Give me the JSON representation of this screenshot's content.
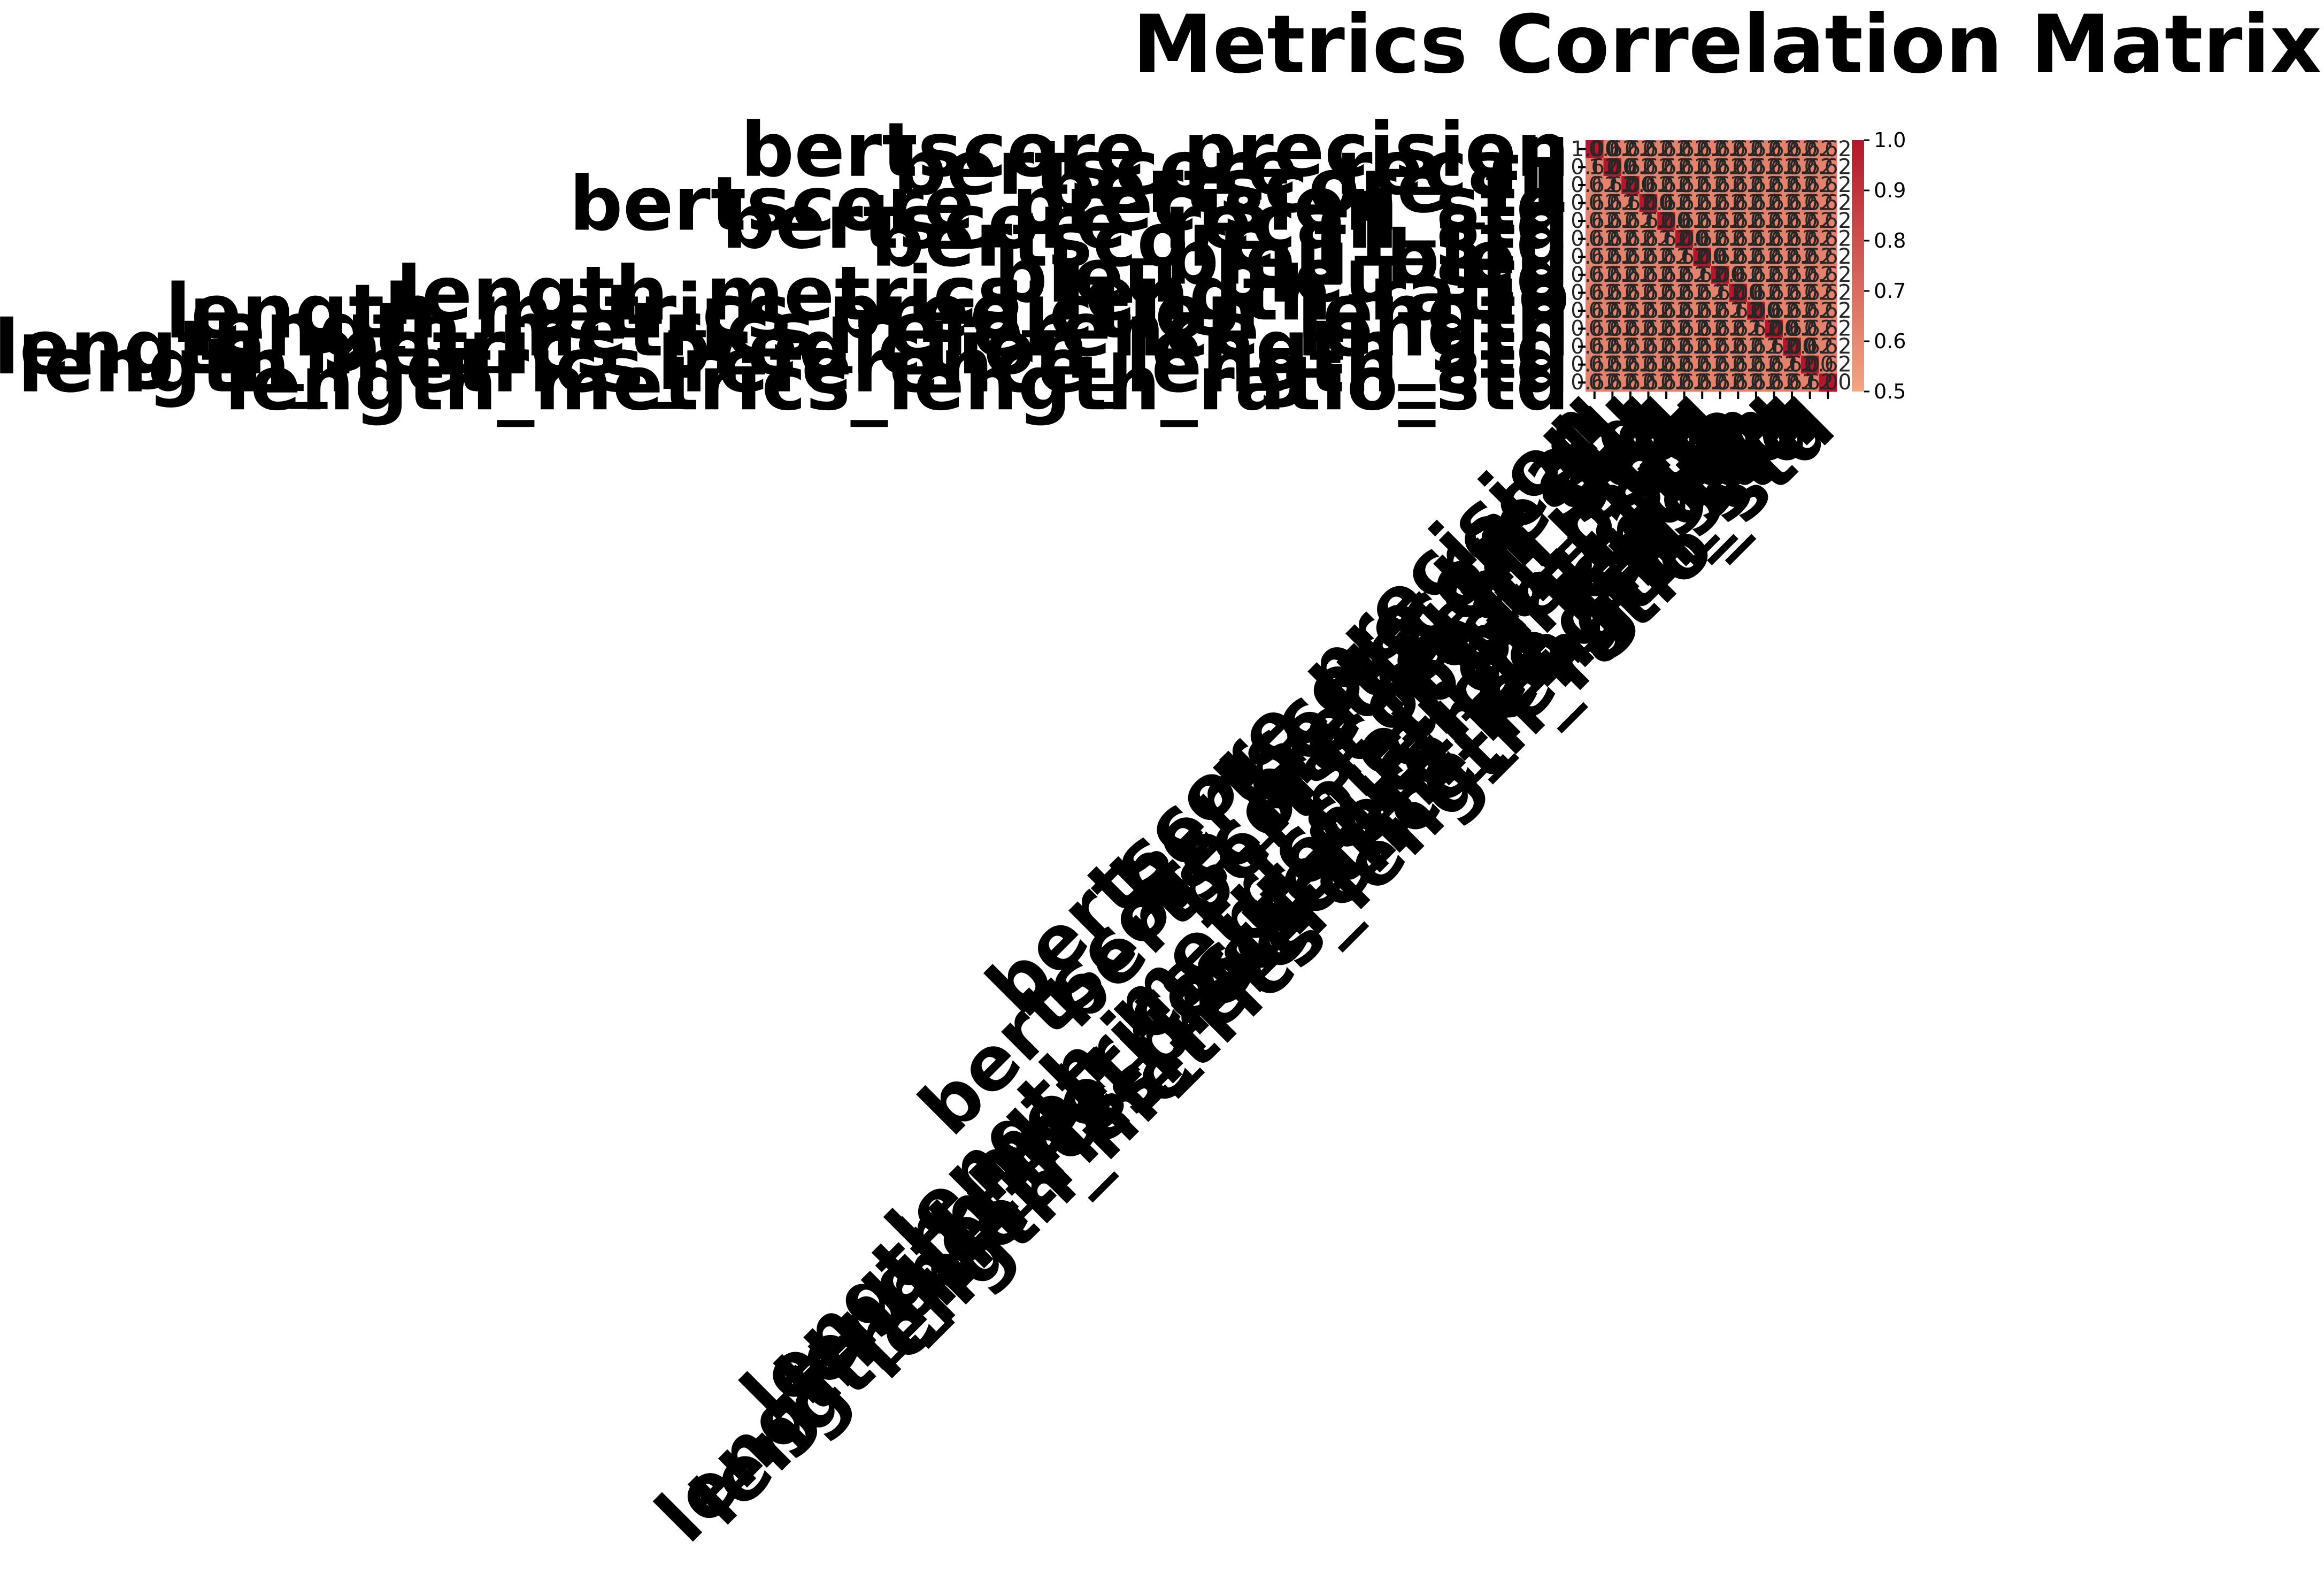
{
  "chart_data": {
    "type": "heatmap",
    "title": "Metrics Correlation Matrix",
    "row_labels": [
      "bertscore_precision",
      "bertscore_recall",
      "bertscore_f1",
      "bertscore_precision_std",
      "bertscore_recall_std",
      "bertscore_f1_std",
      "bleu_bleu",
      "bleu_bleu_std",
      "length_metrics_length_ratio",
      "length_metrics_prediction_length",
      "length_metrics_reference_length",
      "length_metrics_prediction_length_std",
      "length_metrics_reference_length_std",
      "length_metrics_length_ratio_std"
    ],
    "col_labels": [
      "bertscore_precision",
      "bertscore_recall",
      "bertscore_f1",
      "bertscore_precision_std",
      "bertscore_recall_std",
      "bertscore_f1_std",
      "bleu_bleu",
      "bleu_bleu_std",
      "length_metrics_length_ratio",
      "length_metrics_prediction_length",
      "length_metrics_reference_length",
      "length_metrics_prediction_length_std",
      "length_metrics_reference_length_std",
      "length_metrics_length_ratio_std"
    ],
    "values": [
      [
        1.0,
        0.62,
        0.62,
        0.62,
        0.62,
        0.62,
        0.62,
        0.62,
        0.62,
        0.62,
        0.62,
        0.62,
        0.62,
        0.62
      ],
      [
        0.62,
        1.0,
        0.62,
        0.62,
        0.62,
        0.62,
        0.62,
        0.62,
        0.62,
        0.62,
        0.62,
        0.62,
        0.62,
        0.62
      ],
      [
        0.62,
        0.62,
        1.0,
        0.62,
        0.62,
        0.62,
        0.62,
        0.62,
        0.62,
        0.62,
        0.62,
        0.62,
        0.62,
        0.62
      ],
      [
        0.62,
        0.62,
        0.62,
        1.0,
        0.62,
        0.62,
        0.62,
        0.62,
        0.62,
        0.62,
        0.62,
        0.62,
        0.62,
        0.62
      ],
      [
        0.62,
        0.62,
        0.62,
        0.62,
        1.0,
        0.62,
        0.62,
        0.62,
        0.62,
        0.62,
        0.62,
        0.62,
        0.62,
        0.62
      ],
      [
        0.62,
        0.62,
        0.62,
        0.62,
        0.62,
        1.0,
        0.62,
        0.62,
        0.62,
        0.62,
        0.62,
        0.62,
        0.62,
        0.62
      ],
      [
        0.62,
        0.62,
        0.62,
        0.62,
        0.62,
        0.62,
        1.0,
        0.62,
        0.62,
        0.62,
        0.62,
        0.62,
        0.62,
        0.62
      ],
      [
        0.62,
        0.62,
        0.62,
        0.62,
        0.62,
        0.62,
        0.62,
        1.0,
        0.62,
        0.62,
        0.62,
        0.62,
        0.62,
        0.62
      ],
      [
        0.62,
        0.62,
        0.62,
        0.62,
        0.62,
        0.62,
        0.62,
        0.62,
        1.0,
        0.62,
        0.62,
        0.62,
        0.62,
        0.62
      ],
      [
        0.62,
        0.62,
        0.62,
        0.62,
        0.62,
        0.62,
        0.62,
        0.62,
        0.62,
        1.0,
        0.62,
        0.62,
        0.62,
        0.62
      ],
      [
        0.62,
        0.62,
        0.62,
        0.62,
        0.62,
        0.62,
        0.62,
        0.62,
        0.62,
        0.62,
        1.0,
        0.62,
        0.62,
        0.62
      ],
      [
        0.62,
        0.62,
        0.62,
        0.62,
        0.62,
        0.62,
        0.62,
        0.62,
        0.62,
        0.62,
        0.62,
        1.0,
        0.62,
        0.62
      ],
      [
        0.62,
        0.62,
        0.62,
        0.62,
        0.62,
        0.62,
        0.62,
        0.62,
        0.62,
        0.62,
        0.62,
        0.62,
        1.0,
        0.62
      ],
      [
        0.62,
        0.62,
        0.62,
        0.62,
        0.62,
        0.62,
        0.62,
        0.62,
        0.62,
        0.62,
        0.62,
        0.62,
        0.62,
        1.0
      ]
    ],
    "colorbar": {
      "range": [
        0.5,
        1.0
      ],
      "ticks": [
        "0.5",
        "0.6",
        "0.7",
        "0.8",
        "0.9",
        "1.0"
      ],
      "colormap": "Reds",
      "low_color": "#f4a582",
      "high_color": "#b2182b"
    },
    "annotated": true,
    "grid": false,
    "legend": "colorbar-right"
  }
}
